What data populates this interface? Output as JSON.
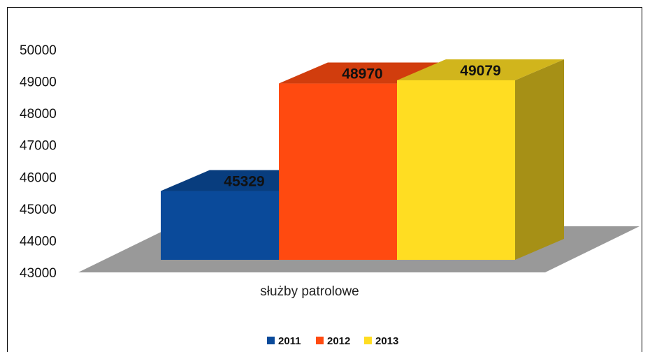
{
  "chart_data": {
    "type": "bar",
    "categories": [
      "służby patrolowe"
    ],
    "series": [
      {
        "name": "2011",
        "values": [
          45329
        ],
        "color": "#0a4a9a"
      },
      {
        "name": "2012",
        "values": [
          48970
        ],
        "color": "#ff4a10"
      },
      {
        "name": "2013",
        "values": [
          49079
        ],
        "color": "#ffdd22"
      }
    ],
    "yticks": [
      43000,
      44000,
      45000,
      46000,
      47000,
      48000,
      49000,
      50000
    ],
    "ylim": [
      43000,
      50000
    ],
    "grid": false,
    "legend_position": "bottom",
    "floor_color": "#999999",
    "three_d": true
  }
}
